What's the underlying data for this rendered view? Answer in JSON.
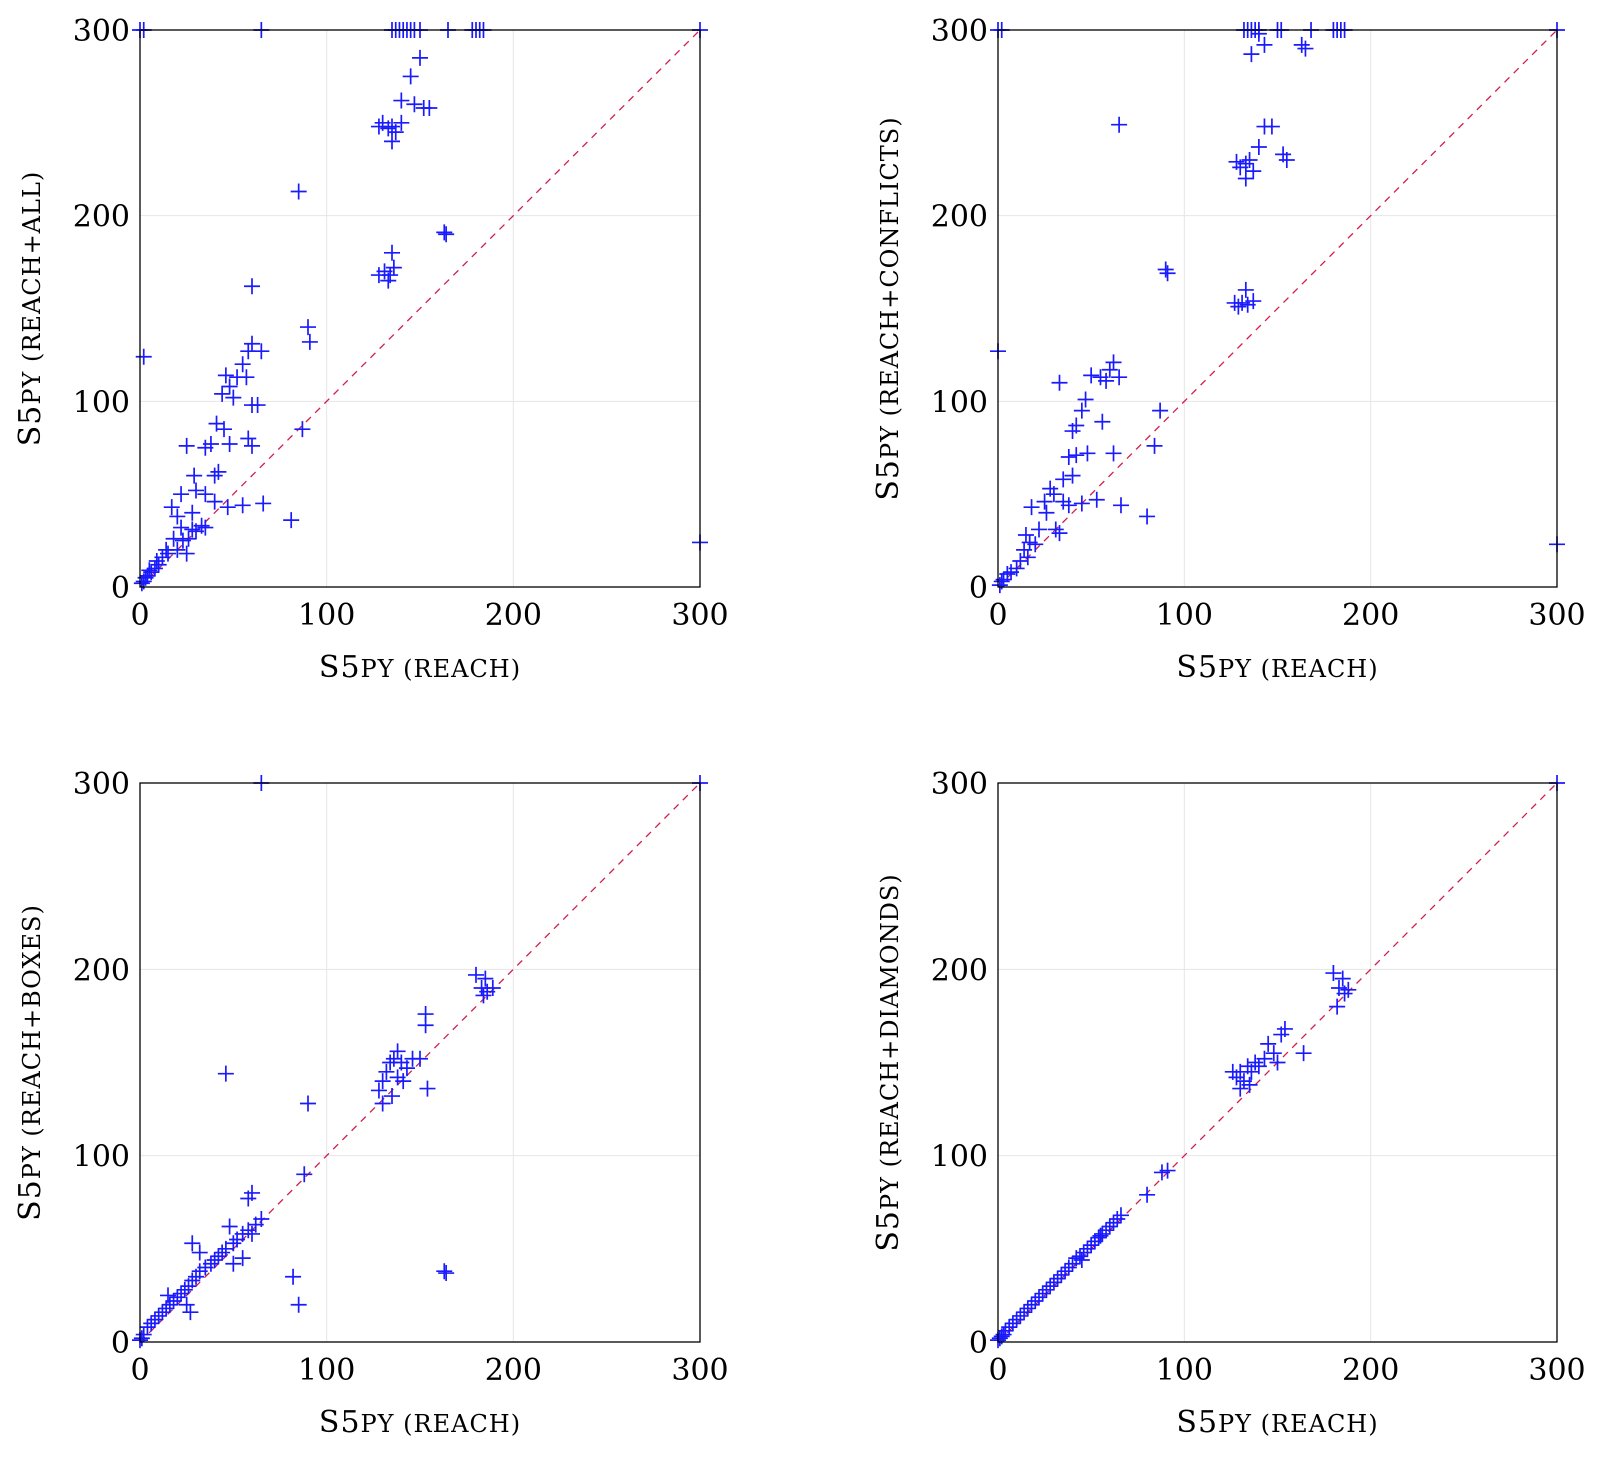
{
  "chart_data": [
    {
      "type": "scatter",
      "xlabel_main": "S5",
      "xlabel_small": "PY (REACH)",
      "ylabel_main": "S5",
      "ylabel_small": "PY (REACH+ALL)",
      "xlim": [
        0,
        300
      ],
      "ylim": [
        0,
        300
      ],
      "xticks": [
        "0",
        "100",
        "200",
        "300"
      ],
      "yticks": [
        "0",
        "100",
        "200",
        "300"
      ],
      "grid": true,
      "reference_line": "y = x",
      "marker": "+",
      "colors": {
        "points": "#1a1aff",
        "diagonal": "#d21f4b"
      },
      "points": [
        [
          0,
          300
        ],
        [
          2,
          300
        ],
        [
          65,
          300
        ],
        [
          135,
          300
        ],
        [
          137,
          300
        ],
        [
          139,
          300
        ],
        [
          141,
          300
        ],
        [
          143,
          300
        ],
        [
          145,
          300
        ],
        [
          147,
          300
        ],
        [
          150,
          300
        ],
        [
          165,
          300
        ],
        [
          178,
          300
        ],
        [
          180,
          300
        ],
        [
          182,
          300
        ],
        [
          184,
          300
        ],
        [
          300,
          300
        ],
        [
          150,
          285
        ],
        [
          145,
          275
        ],
        [
          140,
          262
        ],
        [
          147,
          260
        ],
        [
          152,
          258
        ],
        [
          155,
          258
        ],
        [
          128,
          248
        ],
        [
          130,
          250
        ],
        [
          133,
          247
        ],
        [
          135,
          248
        ],
        [
          137,
          245
        ],
        [
          140,
          250
        ],
        [
          135,
          240
        ],
        [
          85,
          213
        ],
        [
          163,
          191
        ],
        [
          164,
          190
        ],
        [
          128,
          168
        ],
        [
          131,
          170
        ],
        [
          134,
          168
        ],
        [
          136,
          172
        ],
        [
          133,
          165
        ],
        [
          135,
          180
        ],
        [
          60,
          162
        ],
        [
          90,
          140
        ],
        [
          91,
          132
        ],
        [
          65,
          127
        ],
        [
          58,
          127
        ],
        [
          55,
          120
        ],
        [
          60,
          131
        ],
        [
          57,
          113
        ],
        [
          52,
          113
        ],
        [
          48,
          108
        ],
        [
          44,
          104
        ],
        [
          50,
          102
        ],
        [
          46,
          114
        ],
        [
          60,
          98
        ],
        [
          63,
          98
        ],
        [
          41,
          88
        ],
        [
          45,
          85
        ],
        [
          38,
          77
        ],
        [
          35,
          75
        ],
        [
          48,
          77
        ],
        [
          60,
          76
        ],
        [
          58,
          80
        ],
        [
          25,
          76
        ],
        [
          87,
          85
        ],
        [
          42,
          62
        ],
        [
          40,
          60
        ],
        [
          29,
          60
        ],
        [
          22,
          50
        ],
        [
          30,
          52
        ],
        [
          28,
          40
        ],
        [
          35,
          50
        ],
        [
          40,
          46
        ],
        [
          55,
          44
        ],
        [
          47,
          43
        ],
        [
          66,
          45
        ],
        [
          81,
          36
        ],
        [
          20,
          38
        ],
        [
          17,
          43
        ],
        [
          22,
          32
        ],
        [
          30,
          30
        ],
        [
          35,
          32
        ],
        [
          26,
          26
        ],
        [
          23,
          25
        ],
        [
          20,
          20
        ],
        [
          15,
          18
        ],
        [
          14,
          20
        ],
        [
          12,
          16
        ],
        [
          10,
          12
        ],
        [
          8,
          10
        ],
        [
          6,
          8
        ],
        [
          4,
          6
        ],
        [
          3,
          5
        ],
        [
          2,
          3
        ],
        [
          1,
          2
        ],
        [
          5,
          9
        ],
        [
          9,
          14
        ],
        [
          18,
          26
        ],
        [
          25,
          18
        ],
        [
          28,
          31
        ],
        [
          33,
          33
        ],
        [
          2,
          124
        ],
        [
          300,
          24
        ]
      ]
    },
    {
      "type": "scatter",
      "xlabel_main": "S5",
      "xlabel_small": "PY (REACH)",
      "ylabel_main": "S5",
      "ylabel_small": "PY (REACH+CONFLICTS)",
      "xlim": [
        0,
        300
      ],
      "ylim": [
        0,
        300
      ],
      "xticks": [
        "0",
        "100",
        "200",
        "300"
      ],
      "yticks": [
        "0",
        "100",
        "200",
        "300"
      ],
      "grid": true,
      "reference_line": "y = x",
      "marker": "+",
      "colors": {
        "points": "#1a1aff",
        "diagonal": "#d21f4b"
      },
      "points": [
        [
          0,
          300
        ],
        [
          2,
          300
        ],
        [
          132,
          300
        ],
        [
          134,
          300
        ],
        [
          136,
          300
        ],
        [
          138,
          300
        ],
        [
          140,
          300
        ],
        [
          150,
          300
        ],
        [
          152,
          300
        ],
        [
          168,
          300
        ],
        [
          180,
          300
        ],
        [
          182,
          300
        ],
        [
          184,
          300
        ],
        [
          186,
          300
        ],
        [
          300,
          300
        ],
        [
          140,
          298
        ],
        [
          136,
          287
        ],
        [
          143,
          292
        ],
        [
          163,
          292
        ],
        [
          165,
          290
        ],
        [
          65,
          249
        ],
        [
          143,
          248
        ],
        [
          147,
          248
        ],
        [
          153,
          233
        ],
        [
          155,
          230
        ],
        [
          128,
          229
        ],
        [
          130,
          226
        ],
        [
          133,
          228
        ],
        [
          135,
          230
        ],
        [
          137,
          224
        ],
        [
          140,
          237
        ],
        [
          133,
          220
        ],
        [
          90,
          171
        ],
        [
          91,
          169
        ],
        [
          127,
          153
        ],
        [
          129,
          151
        ],
        [
          131,
          153
        ],
        [
          134,
          152
        ],
        [
          137,
          154
        ],
        [
          133,
          160
        ],
        [
          62,
          121
        ],
        [
          65,
          113
        ],
        [
          60,
          117
        ],
        [
          58,
          111
        ],
        [
          55,
          113
        ],
        [
          50,
          114
        ],
        [
          47,
          101
        ],
        [
          45,
          95
        ],
        [
          42,
          87
        ],
        [
          40,
          84
        ],
        [
          33,
          110
        ],
        [
          56,
          89
        ],
        [
          87,
          95
        ],
        [
          84,
          76
        ],
        [
          62,
          72
        ],
        [
          48,
          72
        ],
        [
          42,
          71
        ],
        [
          38,
          70
        ],
        [
          40,
          60
        ],
        [
          35,
          58
        ],
        [
          30,
          50
        ],
        [
          28,
          53
        ],
        [
          26,
          40
        ],
        [
          25,
          46
        ],
        [
          35,
          46
        ],
        [
          38,
          44
        ],
        [
          66,
          44
        ],
        [
          80,
          38
        ],
        [
          53,
          47
        ],
        [
          45,
          45
        ],
        [
          31,
          31
        ],
        [
          22,
          31
        ],
        [
          18,
          43
        ],
        [
          15,
          28
        ],
        [
          20,
          23
        ],
        [
          16,
          16
        ],
        [
          12,
          14
        ],
        [
          10,
          10
        ],
        [
          7,
          8
        ],
        [
          5,
          7
        ],
        [
          3,
          4
        ],
        [
          2,
          3
        ],
        [
          1,
          1
        ],
        [
          14,
          20
        ],
        [
          17,
          24
        ],
        [
          33,
          29
        ],
        [
          0,
          127
        ],
        [
          300,
          23
        ]
      ]
    },
    {
      "type": "scatter",
      "xlabel_main": "S5",
      "xlabel_small": "PY (REACH)",
      "ylabel_main": "S5",
      "ylabel_small": "PY (REACH+BOXES)",
      "xlim": [
        0,
        300
      ],
      "ylim": [
        0,
        300
      ],
      "xticks": [
        "0",
        "100",
        "200",
        "300"
      ],
      "yticks": [
        "0",
        "100",
        "200",
        "300"
      ],
      "grid": true,
      "reference_line": "y = x",
      "marker": "+",
      "colors": {
        "points": "#1a1aff",
        "diagonal": "#d21f4b"
      },
      "points": [
        [
          65,
          300
        ],
        [
          300,
          300
        ],
        [
          180,
          197
        ],
        [
          185,
          195
        ],
        [
          183,
          190
        ],
        [
          186,
          188
        ],
        [
          189,
          190
        ],
        [
          184,
          186
        ],
        [
          153,
          176
        ],
        [
          153,
          170
        ],
        [
          128,
          135
        ],
        [
          130,
          140
        ],
        [
          132,
          145
        ],
        [
          134,
          150
        ],
        [
          136,
          152
        ],
        [
          138,
          156
        ],
        [
          140,
          150
        ],
        [
          143,
          147
        ],
        [
          146,
          152
        ],
        [
          150,
          152
        ],
        [
          130,
          128
        ],
        [
          135,
          132
        ],
        [
          138,
          142
        ],
        [
          141,
          140
        ],
        [
          154,
          136
        ],
        [
          46,
          144
        ],
        [
          90,
          128
        ],
        [
          88,
          90
        ],
        [
          60,
          80
        ],
        [
          58,
          77
        ],
        [
          65,
          66
        ],
        [
          62,
          63
        ],
        [
          58,
          60
        ],
        [
          55,
          58
        ],
        [
          52,
          55
        ],
        [
          50,
          53
        ],
        [
          48,
          62
        ],
        [
          46,
          50
        ],
        [
          44,
          48
        ],
        [
          42,
          46
        ],
        [
          40,
          44
        ],
        [
          38,
          42
        ],
        [
          35,
          40
        ],
        [
          32,
          38
        ],
        [
          30,
          35
        ],
        [
          28,
          33
        ],
        [
          26,
          30
        ],
        [
          24,
          28
        ],
        [
          22,
          26
        ],
        [
          20,
          24
        ],
        [
          18,
          22
        ],
        [
          16,
          20
        ],
        [
          14,
          18
        ],
        [
          12,
          16
        ],
        [
          10,
          14
        ],
        [
          8,
          12
        ],
        [
          6,
          10
        ],
        [
          4,
          8
        ],
        [
          2,
          4
        ],
        [
          1,
          2
        ],
        [
          0,
          1
        ],
        [
          28,
          53
        ],
        [
          32,
          48
        ],
        [
          15,
          25
        ],
        [
          25,
          20
        ],
        [
          27,
          16
        ],
        [
          82,
          35
        ],
        [
          85,
          20
        ],
        [
          163,
          38
        ],
        [
          164,
          37
        ],
        [
          55,
          45
        ],
        [
          60,
          58
        ],
        [
          50,
          42
        ]
      ]
    },
    {
      "type": "scatter",
      "xlabel_main": "S5",
      "xlabel_small": "PY (REACH)",
      "ylabel_main": "S5",
      "ylabel_small": "PY (REACH+DIAMONDS)",
      "xlim": [
        0,
        300
      ],
      "ylim": [
        0,
        300
      ],
      "xticks": [
        "0",
        "100",
        "200",
        "300"
      ],
      "yticks": [
        "0",
        "100",
        "200",
        "300"
      ],
      "grid": true,
      "reference_line": "y = x",
      "marker": "+",
      "colors": {
        "points": "#1a1aff",
        "diagonal": "#d21f4b"
      },
      "points": [
        [
          300,
          300
        ],
        [
          180,
          198
        ],
        [
          185,
          195
        ],
        [
          183,
          190
        ],
        [
          186,
          187
        ],
        [
          188,
          189
        ],
        [
          182,
          180
        ],
        [
          154,
          168
        ],
        [
          152,
          165
        ],
        [
          164,
          155
        ],
        [
          126,
          145
        ],
        [
          128,
          142
        ],
        [
          130,
          145
        ],
        [
          132,
          140
        ],
        [
          134,
          148
        ],
        [
          136,
          145
        ],
        [
          138,
          150
        ],
        [
          140,
          148
        ],
        [
          143,
          152
        ],
        [
          145,
          160
        ],
        [
          148,
          155
        ],
        [
          150,
          150
        ],
        [
          130,
          136
        ],
        [
          135,
          138
        ],
        [
          88,
          91
        ],
        [
          91,
          92
        ],
        [
          80,
          79
        ],
        [
          66,
          68
        ],
        [
          64,
          66
        ],
        [
          62,
          64
        ],
        [
          60,
          62
        ],
        [
          58,
          60
        ],
        [
          56,
          58
        ],
        [
          54,
          56
        ],
        [
          52,
          54
        ],
        [
          50,
          52
        ],
        [
          48,
          50
        ],
        [
          46,
          48
        ],
        [
          44,
          46
        ],
        [
          42,
          45
        ],
        [
          40,
          42
        ],
        [
          38,
          40
        ],
        [
          36,
          38
        ],
        [
          34,
          36
        ],
        [
          32,
          34
        ],
        [
          30,
          32
        ],
        [
          28,
          30
        ],
        [
          26,
          28
        ],
        [
          24,
          26
        ],
        [
          22,
          24
        ],
        [
          20,
          22
        ],
        [
          18,
          20
        ],
        [
          16,
          18
        ],
        [
          14,
          16
        ],
        [
          12,
          14
        ],
        [
          10,
          12
        ],
        [
          8,
          10
        ],
        [
          6,
          8
        ],
        [
          4,
          6
        ],
        [
          3,
          4
        ],
        [
          2,
          3
        ],
        [
          1,
          2
        ],
        [
          0,
          1
        ],
        [
          45,
          44
        ],
        [
          55,
          57
        ]
      ]
    }
  ]
}
